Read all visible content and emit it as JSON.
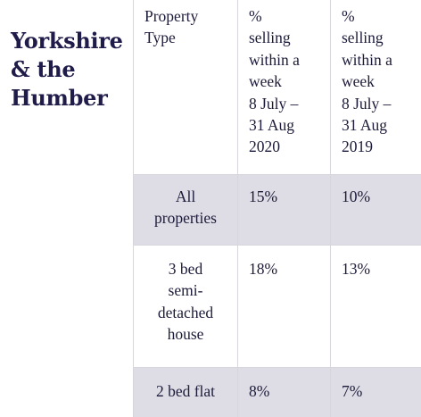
{
  "region_title": [
    "Yorkshire",
    "& the",
    "Humber"
  ],
  "headers": {
    "property_type": [
      "Property",
      "Type"
    ],
    "col_2020": [
      "%",
      "selling",
      "within a",
      "week",
      "8 July –",
      "31 Aug",
      "2020"
    ],
    "col_2019": [
      "%",
      "selling",
      "within a",
      "week",
      "8 July –",
      "31 Aug",
      "2019"
    ]
  },
  "rows": [
    {
      "type": [
        "All",
        "properties"
      ],
      "pct_2020": "15%",
      "pct_2019": "10%"
    },
    {
      "type": [
        "3 bed",
        "semi-",
        "detached",
        "house"
      ],
      "pct_2020": "18%",
      "pct_2019": "13%"
    },
    {
      "type": [
        "2 bed flat"
      ],
      "pct_2020": "8%",
      "pct_2019": "7%"
    }
  ],
  "colors": {
    "row_shade": "#dedde5",
    "title": "#201c4a",
    "grid": "#d6d6dc"
  }
}
